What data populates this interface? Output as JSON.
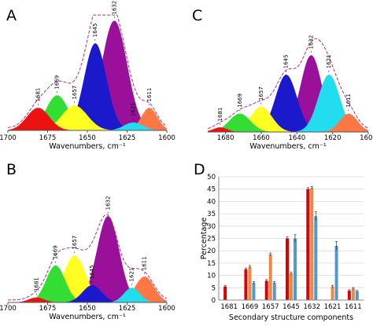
{
  "chart_data": [
    {
      "panel": "A",
      "type": "area",
      "xlabel": "Wavenumbers, cm⁻¹",
      "xlim": [
        1700,
        1600
      ],
      "ticks": [
        1700,
        1675,
        1650,
        1625,
        1600
      ],
      "peaks": [
        {
          "label": "1681",
          "center": 1681,
          "height": 0.2,
          "width": 7,
          "color": "#ee1111"
        },
        {
          "label": "1669",
          "center": 1669,
          "height": 0.31,
          "width": 7,
          "color": "#33dd33"
        },
        {
          "label": "1657",
          "center": 1658,
          "height": 0.22,
          "width": 8,
          "color": "#ffff22"
        },
        {
          "label": "1645",
          "center": 1645,
          "height": 0.77,
          "width": 7,
          "color": "#1a1acc"
        },
        {
          "label": "1632",
          "center": 1633,
          "height": 0.97,
          "width": 8,
          "color": "#9a109a"
        },
        {
          "label": "1621",
          "center": 1621,
          "height": 0.07,
          "width": 6,
          "color": "#22ddee"
        },
        {
          "label": "1611",
          "center": 1611,
          "height": 0.2,
          "width": 5,
          "color": "#ff7744"
        }
      ]
    },
    {
      "panel": "B",
      "type": "area",
      "xlabel": "Wavenumbers, cm⁻¹",
      "xlim": [
        1700,
        1600
      ],
      "ticks": [
        1700,
        1675,
        1650,
        1625,
        1600
      ],
      "peaks": [
        {
          "label": "1681",
          "center": 1682,
          "height": 0.04,
          "width": 5,
          "color": "#ee1111"
        },
        {
          "label": "1669",
          "center": 1670,
          "height": 0.3,
          "width": 6,
          "color": "#33dd33"
        },
        {
          "label": "1657",
          "center": 1658,
          "height": 0.38,
          "width": 7,
          "color": "#ffff22"
        },
        {
          "label": "1645",
          "center": 1647,
          "height": 0.14,
          "width": 6,
          "color": "#1a1acc"
        },
        {
          "label": "1632",
          "center": 1637,
          "height": 0.7,
          "width": 7,
          "color": "#9a109a"
        },
        {
          "label": "1621",
          "center": 1622,
          "height": 0.12,
          "width": 5,
          "color": "#22ddee"
        },
        {
          "label": "1611",
          "center": 1614,
          "height": 0.21,
          "width": 6,
          "color": "#ff7744"
        }
      ]
    },
    {
      "panel": "C",
      "type": "area",
      "xlabel": "Wavenumbers, cm⁻¹",
      "xlim": [
        1690,
        1600
      ],
      "ticks": [
        1680,
        1660,
        1640,
        1620,
        1600
      ],
      "peaks": [
        {
          "label": "1681",
          "center": 1683,
          "height": 0.04,
          "width": 4,
          "color": "#ee1111"
        },
        {
          "label": "1669",
          "center": 1672,
          "height": 0.16,
          "width": 6,
          "color": "#33dd33"
        },
        {
          "label": "1657",
          "center": 1660,
          "height": 0.22,
          "width": 6,
          "color": "#ffff22"
        },
        {
          "label": "1645",
          "center": 1646,
          "height": 0.5,
          "width": 6,
          "color": "#1a1acc"
        },
        {
          "label": "1632",
          "center": 1632,
          "height": 0.67,
          "width": 6,
          "color": "#9a109a"
        },
        {
          "label": "1621",
          "center": 1622,
          "height": 0.5,
          "width": 6,
          "color": "#22ddee"
        },
        {
          "label": "1611",
          "center": 1611,
          "height": 0.16,
          "width": 5,
          "color": "#ff7744"
        }
      ]
    },
    {
      "panel": "D",
      "type": "bar",
      "categories": [
        "1681",
        "1669",
        "1657",
        "1645",
        "1632",
        "1621",
        "1611"
      ],
      "xlabel": "Secondary structure components",
      "ylabel": "Percentage",
      "ylim": [
        0,
        50
      ],
      "yticks": [
        0,
        5,
        10,
        15,
        20,
        25,
        30,
        35,
        40,
        45,
        50
      ],
      "series": [
        {
          "color": "#dd0000",
          "values": [
            5.5,
            12.5,
            7.8,
            25.0,
            45.0,
            0,
            3.8
          ],
          "errors": [
            0.5,
            0.5,
            0.5,
            0.6,
            0.6,
            0,
            0.4
          ]
        },
        {
          "color": "#ee8844",
          "values": [
            0,
            13.5,
            18.5,
            10.8,
            45.5,
            5.5,
            4.7
          ],
          "errors": [
            0,
            0.5,
            0.6,
            0.6,
            0.6,
            0.5,
            0.4
          ]
        },
        {
          "color": "#5599cc",
          "values": [
            0,
            7.0,
            7.0,
            25.0,
            34.0,
            22.0,
            3.5
          ],
          "errors": [
            0,
            0.5,
            0.5,
            1.5,
            1.8,
            1.8,
            0.4
          ]
        }
      ]
    }
  ]
}
